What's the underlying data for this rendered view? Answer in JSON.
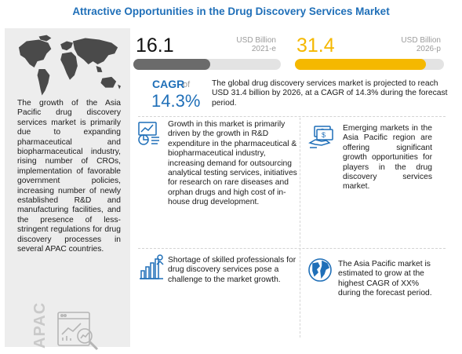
{
  "title": "Attractive Opportunities in the Drug Discovery Services Market",
  "left_panel": {
    "description": "The growth of the Asia Pacific drug discovery services market is primarily due to expanding pharmaceutical and biopharmaceutical industry, rising number of CROs, implementation of favorable government policies, increasing number of newly established R&D and manufacturing facilities, and the presence of less-stringent regulations for drug discovery processes in several APAC countries.",
    "region_label": "APAC",
    "map_icon": "world-map-icon",
    "analytics_icon": "analytics-magnifier-icon"
  },
  "market_size": {
    "current": {
      "value": "16.1",
      "unit": "USD Billion",
      "year": "2021-e",
      "fill_fraction": 0.52
    },
    "forecast": {
      "value": "31.4",
      "unit": "USD Billion",
      "year": "2026-p",
      "fill_fraction": 0.88
    }
  },
  "cagr": {
    "label": "CAGR",
    "of": "of",
    "value": "14.3%",
    "summary": "The global drug discovery services market is projected to reach USD 31.4 billion by 2026, at a CAGR of 14.3% during the forecast period."
  },
  "insights": [
    {
      "icon": "growth-chart-icon",
      "text": "Growth in this market is primarily driven by the growth in R&D expenditure in the pharmaceutical & biopharmaceutical industry, increasing demand for outsourcing analytical testing services, initiatives for research on rare diseases and orphan drugs and high cost of in-house drug development."
    },
    {
      "icon": "money-opportunity-icon",
      "text": "Emerging markets in the Asia Pacific region are offering significant growth opportunities for players in the drug discovery services market."
    },
    {
      "icon": "bar-chart-person-icon",
      "text": "Shortage of skilled professionals for drug discovery services pose a challenge to the market growth."
    },
    {
      "icon": "globe-icon",
      "text": "The Asia Pacific market is estimated to grow at the highest CAGR of XX% during the forecast period."
    }
  ],
  "colors": {
    "title_blue": "#1f6fb8",
    "accent_yellow": "#f5b800",
    "bar_gray": "#6b6b6b",
    "panel_gray": "#ededed"
  }
}
